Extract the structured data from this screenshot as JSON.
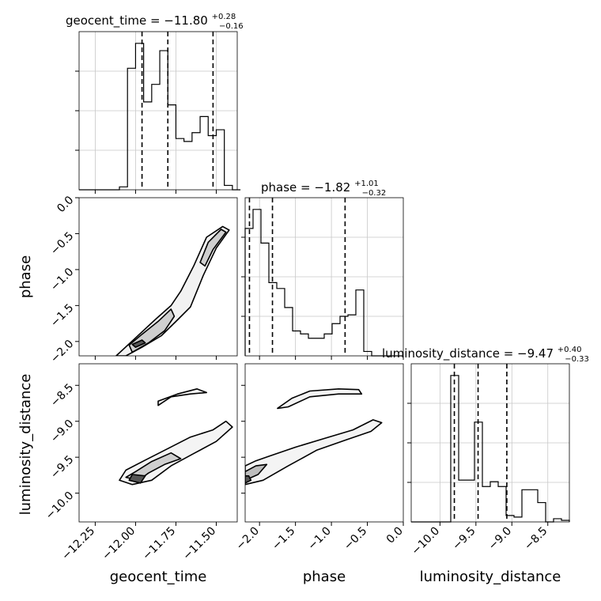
{
  "chart_data": {
    "type": "corner",
    "parameters": [
      "geocent_time",
      "phase",
      "luminosity_distance"
    ],
    "axis_labels": {
      "geocent_time": "geocent_time",
      "phase": "phase",
      "luminosity_distance": "luminosity_distance"
    },
    "ranges": {
      "geocent_time": [
        -12.35,
        -11.37
      ],
      "phase": [
        -2.2,
        0.0
      ],
      "luminosity_distance": [
        -10.4,
        -8.2
      ]
    },
    "ticks": {
      "geocent_time": [
        -12.25,
        -12.0,
        -11.75,
        -11.5
      ],
      "phase": [
        -2.0,
        -1.5,
        -1.0,
        -0.5,
        0.0
      ],
      "luminosity_distance": [
        -10.0,
        -9.5,
        -9.0,
        -8.5
      ]
    },
    "tick_labels": {
      "geocent_time": [
        "−12.25",
        "−12.00",
        "−11.75",
        "−11.50"
      ],
      "phase": [
        "−2.0",
        "−1.5",
        "−1.0",
        "−0.5",
        "0.0"
      ],
      "luminosity_distance": [
        "−10.0",
        "−9.5",
        "−9.0",
        "−8.5"
      ]
    },
    "titles": [
      {
        "prefix": "geocent_time = −11.80",
        "sup": "+0.28",
        "sub": "−0.16"
      },
      {
        "prefix": "phase = −1.82",
        "sup": "+1.01",
        "sub": "−0.32"
      },
      {
        "prefix": "luminosity_distance = −9.47",
        "sup": "+0.40",
        "sub": "−0.33"
      }
    ],
    "quantiles": {
      "geocent_time": [
        -11.96,
        -11.8,
        -11.52
      ],
      "phase": [
        -2.14,
        -1.82,
        -0.81
      ],
      "luminosity_distance": [
        -9.8,
        -9.47,
        -9.07
      ]
    },
    "histograms": {
      "geocent_time": {
        "edges": [
          -12.35,
          -12.3,
          -12.25,
          -12.2,
          -12.15,
          -12.1,
          -12.05,
          -12.0,
          -11.95,
          -11.9,
          -11.85,
          -11.8,
          -11.75,
          -11.7,
          -11.65,
          -11.6,
          -11.55,
          -11.5,
          -11.45,
          -11.4,
          -11.35
        ],
        "counts": [
          0,
          0,
          0,
          0,
          0,
          0.02,
          0.83,
          1.0,
          0.6,
          0.72,
          0.95,
          0.58,
          0.35,
          0.33,
          0.39,
          0.5,
          0.37,
          0.41,
          0.03,
          0
        ]
      },
      "phase": {
        "edges": [
          -2.2,
          -2.09,
          -1.98,
          -1.87,
          -1.76,
          -1.65,
          -1.54,
          -1.43,
          -1.32,
          -1.21,
          -1.1,
          -0.99,
          -0.88,
          -0.77,
          -0.66,
          -0.55,
          -0.44,
          -0.33,
          -0.22,
          -0.11,
          0.0
        ],
        "counts": [
          0.87,
          1.0,
          0.77,
          0.5,
          0.46,
          0.33,
          0.17,
          0.15,
          0.12,
          0.12,
          0.15,
          0.22,
          0.27,
          0.28,
          0.45,
          0.03,
          0,
          0,
          0,
          0
        ]
      },
      "luminosity_distance": {
        "edges": [
          -10.4,
          -10.29,
          -10.18,
          -10.07,
          -9.96,
          -9.85,
          -9.74,
          -9.63,
          -9.52,
          -9.41,
          -9.3,
          -9.19,
          -9.08,
          -8.97,
          -8.86,
          -8.75,
          -8.64,
          -8.53,
          -8.42,
          -8.31,
          -8.2
        ],
        "counts": [
          0,
          0,
          0,
          0,
          0,
          0.91,
          0.26,
          0.26,
          0.62,
          0.22,
          0.25,
          0.22,
          0.04,
          0.03,
          0.2,
          0.2,
          0.12,
          0,
          0.02,
          0.01
        ]
      }
    },
    "contours_2d": [
      {
        "x_param": "geocent_time",
        "y_param": "phase",
        "levels": [
          {
            "fill": "#f2f2f2",
            "points": [
              [
                -12.06,
                -2.2
              ],
              [
                -11.96,
                -2.08
              ],
              [
                -11.84,
                -1.92
              ],
              [
                -11.74,
                -1.7
              ],
              [
                -11.66,
                -1.52
              ],
              [
                -11.58,
                -1.08
              ],
              [
                -11.5,
                -0.7
              ],
              [
                -11.42,
                -0.45
              ],
              [
                -11.46,
                -0.4
              ],
              [
                -11.56,
                -0.55
              ],
              [
                -11.64,
                -0.95
              ],
              [
                -11.72,
                -1.3
              ],
              [
                -11.78,
                -1.5
              ],
              [
                -11.88,
                -1.7
              ],
              [
                -12.0,
                -1.95
              ],
              [
                -12.12,
                -2.2
              ]
            ]
          },
          {
            "fill": "#cfcfcf",
            "points": [
              [
                -12.02,
                -2.15
              ],
              [
                -11.92,
                -2.02
              ],
              [
                -11.82,
                -1.85
              ],
              [
                -11.76,
                -1.65
              ],
              [
                -11.78,
                -1.55
              ],
              [
                -11.86,
                -1.72
              ],
              [
                -11.96,
                -1.9
              ],
              [
                -12.04,
                -2.05
              ]
            ]
          },
          {
            "fill": "#cfcfcf",
            "points": [
              [
                -11.52,
                -0.72
              ],
              [
                -11.44,
                -0.48
              ],
              [
                -11.47,
                -0.44
              ],
              [
                -11.55,
                -0.62
              ],
              [
                -11.6,
                -0.9
              ],
              [
                -11.57,
                -0.95
              ]
            ]
          },
          {
            "fill": "#555555",
            "points": [
              [
                -12.0,
                -2.08
              ],
              [
                -11.94,
                -2.02
              ],
              [
                -11.96,
                -1.98
              ],
              [
                -12.02,
                -2.04
              ]
            ]
          }
        ]
      },
      {
        "x_param": "geocent_time",
        "y_param": "luminosity_distance",
        "levels": [
          {
            "fill": "#f4f4f4",
            "points": [
              [
                -12.1,
                -9.82
              ],
              [
                -12.02,
                -9.88
              ],
              [
                -11.9,
                -9.82
              ],
              [
                -11.78,
                -9.62
              ],
              [
                -11.64,
                -9.45
              ],
              [
                -11.5,
                -9.28
              ],
              [
                -11.4,
                -9.08
              ],
              [
                -11.44,
                -9.0
              ],
              [
                -11.52,
                -9.12
              ],
              [
                -11.66,
                -9.22
              ],
              [
                -11.8,
                -9.38
              ],
              [
                -11.94,
                -9.54
              ],
              [
                -12.06,
                -9.68
              ]
            ]
          },
          {
            "fill": "#f4f4f4",
            "points": [
              [
                -11.86,
                -8.72
              ],
              [
                -11.74,
                -8.62
              ],
              [
                -11.62,
                -8.55
              ],
              [
                -11.56,
                -8.6
              ],
              [
                -11.66,
                -8.62
              ],
              [
                -11.78,
                -8.66
              ],
              [
                -11.86,
                -8.78
              ]
            ]
          },
          {
            "fill": "#cfcfcf",
            "points": [
              [
                -12.06,
                -9.78
              ],
              [
                -11.98,
                -9.82
              ],
              [
                -11.92,
                -9.72
              ],
              [
                -11.82,
                -9.6
              ],
              [
                -11.72,
                -9.52
              ],
              [
                -11.78,
                -9.44
              ],
              [
                -11.9,
                -9.56
              ],
              [
                -12.0,
                -9.7
              ]
            ]
          },
          {
            "fill": "#555555",
            "points": [
              [
                -12.04,
                -9.82
              ],
              [
                -11.97,
                -9.86
              ],
              [
                -11.94,
                -9.76
              ],
              [
                -12.02,
                -9.74
              ]
            ]
          }
        ]
      },
      {
        "x_param": "phase",
        "y_param": "luminosity_distance",
        "levels": [
          {
            "fill": "#f4f4f4",
            "points": [
              [
                -2.2,
                -9.88
              ],
              [
                -1.95,
                -9.82
              ],
              [
                -1.6,
                -9.62
              ],
              [
                -1.2,
                -9.4
              ],
              [
                -0.8,
                -9.26
              ],
              [
                -0.45,
                -9.14
              ],
              [
                -0.3,
                -9.02
              ],
              [
                -0.42,
                -8.98
              ],
              [
                -0.7,
                -9.12
              ],
              [
                -1.1,
                -9.24
              ],
              [
                -1.5,
                -9.36
              ],
              [
                -1.85,
                -9.48
              ],
              [
                -2.05,
                -9.55
              ],
              [
                -2.2,
                -9.62
              ]
            ]
          },
          {
            "fill": "#f4f4f4",
            "points": [
              [
                -1.75,
                -8.82
              ],
              [
                -1.55,
                -8.68
              ],
              [
                -1.3,
                -8.58
              ],
              [
                -0.9,
                -8.55
              ],
              [
                -0.62,
                -8.56
              ],
              [
                -0.58,
                -8.62
              ],
              [
                -0.9,
                -8.62
              ],
              [
                -1.3,
                -8.66
              ],
              [
                -1.6,
                -8.8
              ]
            ]
          },
          {
            "fill": "#bdbdbd",
            "points": [
              [
                -2.2,
                -9.82
              ],
              [
                -2.02,
                -9.74
              ],
              [
                -1.9,
                -9.6
              ],
              [
                -2.05,
                -9.62
              ],
              [
                -2.2,
                -9.7
              ]
            ]
          },
          {
            "fill": "#555555",
            "points": [
              [
                -2.2,
                -9.86
              ],
              [
                -2.12,
                -9.82
              ],
              [
                -2.15,
                -9.76
              ],
              [
                -2.2,
                -9.76
              ]
            ]
          }
        ]
      }
    ]
  }
}
